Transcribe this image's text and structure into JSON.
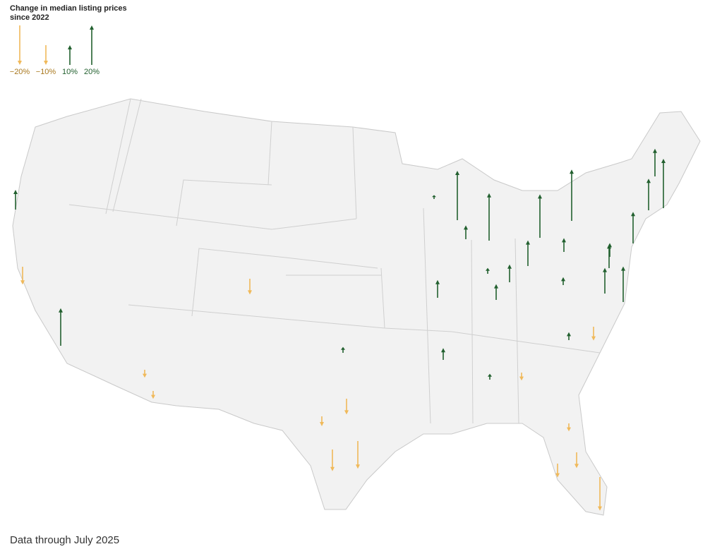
{
  "legend": {
    "title": "Change in median listing prices since 2022",
    "ticks": [
      {
        "value": -20,
        "label": "−20%"
      },
      {
        "value": -10,
        "label": "−10%"
      },
      {
        "value": 10,
        "label": "10%"
      },
      {
        "value": 20,
        "label": "20%"
      }
    ]
  },
  "colors": {
    "increase": "#22602f",
    "decrease": "#f0b95a",
    "increase_text": "#22602f",
    "decrease_text": "#a9781f"
  },
  "arrows": {
    "values": [
      10,
      -9,
      19,
      -4,
      -4,
      -8,
      3,
      -8,
      -5,
      -14,
      -11,
      2,
      25,
      7,
      9,
      6,
      24,
      3,
      8,
      9,
      13,
      22,
      26,
      7,
      4,
      4,
      -7,
      -4,
      3,
      13,
      12,
      7,
      18,
      16,
      16,
      14,
      25,
      -4,
      -8,
      -7,
      -17
    ]
  },
  "footer": "Data through July 2025"
}
